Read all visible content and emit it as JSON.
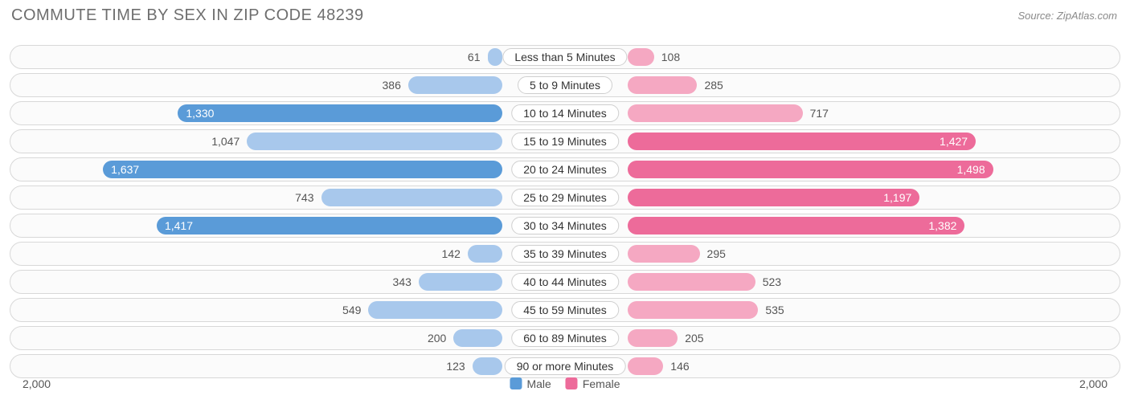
{
  "title": "COMMUTE TIME BY SEX IN ZIP CODE 48239",
  "source": "Source: ZipAtlas.com",
  "chart": {
    "type": "diverging-bar",
    "axis_max": 2000,
    "axis_label_left": "2,000",
    "axis_label_right": "2,000",
    "background_color": "#ffffff",
    "row_border_color": "#d8d8d8",
    "row_bg_color": "#fbfbfb",
    "categories": [
      "Less than 5 Minutes",
      "5 to 9 Minutes",
      "10 to 14 Minutes",
      "15 to 19 Minutes",
      "20 to 24 Minutes",
      "25 to 29 Minutes",
      "30 to 34 Minutes",
      "35 to 39 Minutes",
      "40 to 44 Minutes",
      "45 to 59 Minutes",
      "60 to 89 Minutes",
      "90 or more Minutes"
    ],
    "series": [
      {
        "name": "Male",
        "side": "left",
        "values": [
          61,
          386,
          1330,
          1047,
          1637,
          743,
          1417,
          142,
          343,
          549,
          200,
          123
        ],
        "labels": [
          "61",
          "386",
          "1,330",
          "1,047",
          "1,637",
          "743",
          "1,417",
          "142",
          "343",
          "549",
          "200",
          "123"
        ],
        "color_light": "#a8c8ec",
        "color_dark": "#5a9bd8",
        "label_inside": [
          false,
          false,
          true,
          false,
          true,
          false,
          true,
          false,
          false,
          false,
          false,
          false
        ]
      },
      {
        "name": "Female",
        "side": "right",
        "values": [
          108,
          285,
          717,
          1427,
          1498,
          1197,
          1382,
          295,
          523,
          535,
          205,
          146
        ],
        "labels": [
          "108",
          "285",
          "717",
          "1,427",
          "1,498",
          "1,197",
          "1,382",
          "295",
          "523",
          "535",
          "205",
          "146"
        ],
        "color_light": "#f5a8c2",
        "color_dark": "#ed6b9a",
        "label_inside": [
          false,
          false,
          false,
          true,
          true,
          true,
          true,
          false,
          false,
          false,
          false,
          false
        ]
      }
    ],
    "legend": [
      {
        "label": "Male",
        "color": "#5a9bd8"
      },
      {
        "label": "Female",
        "color": "#ed6b9a"
      }
    ],
    "dark_threshold": 1000
  }
}
